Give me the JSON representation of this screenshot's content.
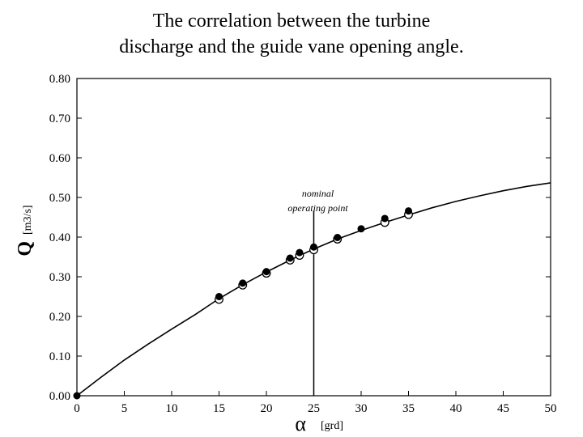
{
  "title_line1": "The correlation between the turbine",
  "title_line2": "discharge and the guide vane opening angle.",
  "chart_data": {
    "type": "scatter",
    "xlabel_symbol": "α",
    "xlabel_unit": "[grd]",
    "ylabel_symbol": "Q",
    "ylabel_unit": "[m3/s]",
    "xlim": [
      0,
      50
    ],
    "ylim": [
      0,
      0.8
    ],
    "xticks": [
      0,
      5,
      10,
      15,
      20,
      25,
      30,
      35,
      40,
      45,
      50
    ],
    "yticks": [
      0,
      0.1,
      0.2,
      0.3,
      0.4,
      0.5,
      0.6,
      0.7,
      0.8
    ],
    "ytick_labels": [
      "0.00",
      "0.10",
      "0.20",
      "0.30",
      "0.40",
      "0.50",
      "0.60",
      "0.70",
      "0.80"
    ],
    "grid": false,
    "curve": {
      "x": [
        0,
        2.5,
        5,
        7.5,
        10,
        12.5,
        15,
        17.5,
        20,
        22.5,
        25,
        27.5,
        30,
        32.5,
        35,
        37.5,
        40,
        42.5,
        45,
        47.5,
        50
      ],
      "y": [
        0,
        0.046,
        0.09,
        0.13,
        0.168,
        0.205,
        0.245,
        0.28,
        0.312,
        0.342,
        0.37,
        0.395,
        0.417,
        0.437,
        0.456,
        0.474,
        0.49,
        0.504,
        0.517,
        0.528,
        0.537
      ]
    },
    "series": [
      {
        "marker": "filled",
        "x": [
          0,
          15,
          17.5,
          20,
          22.5,
          23.5,
          25,
          27.5,
          30,
          32.5,
          35
        ],
        "y": [
          0,
          0.25,
          0.284,
          0.313,
          0.347,
          0.361,
          0.375,
          0.399,
          0.421,
          0.447,
          0.466
        ]
      },
      {
        "marker": "open",
        "x": [
          15,
          17.5,
          20,
          22.5,
          23.5,
          25,
          27.5,
          32.5,
          35
        ],
        "y": [
          0.245,
          0.281,
          0.311,
          0.344,
          0.356,
          0.37,
          0.397,
          0.439,
          0.459
        ]
      }
    ],
    "annotation": {
      "x": 25,
      "line1": "nominal",
      "line2": "operating point"
    }
  }
}
